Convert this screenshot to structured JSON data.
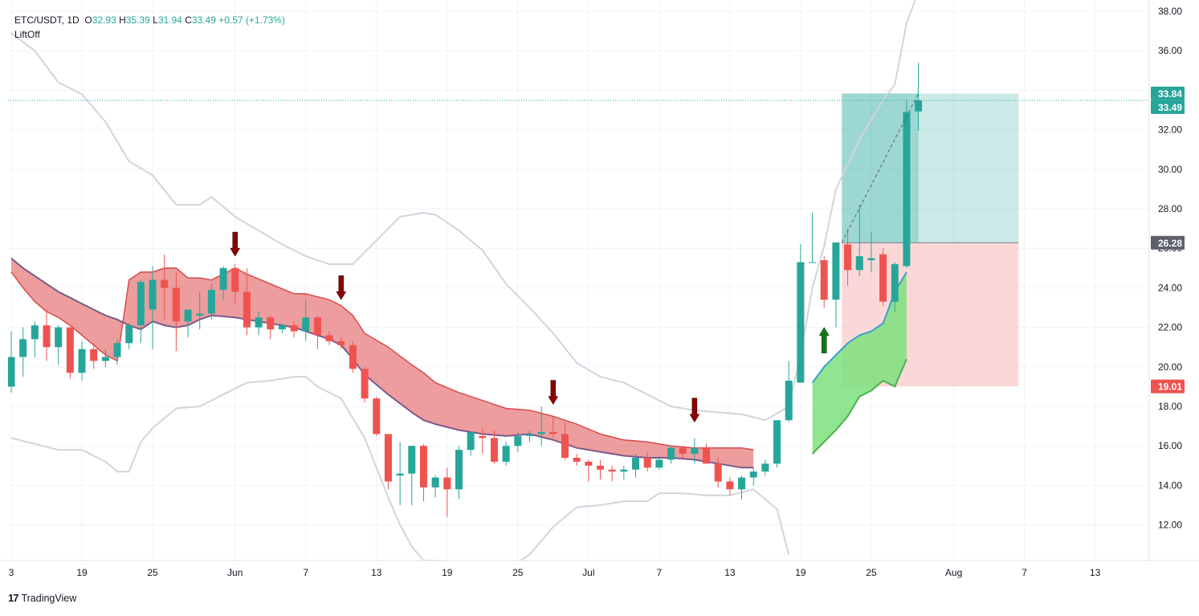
{
  "header": {
    "symbol": "ETC/USDT, 1D",
    "open_label": "O",
    "open": "32.93",
    "high_label": "H",
    "high": "35.39",
    "low_label": "L",
    "low": "31.94",
    "close_label": "C",
    "close": "33.49",
    "change": "+0.57 (+1.73%)",
    "indicator": "LiftOff"
  },
  "footer": {
    "brand_mark": "17",
    "brand": "TradingView"
  },
  "colors": {
    "up": "#26a69a",
    "down": "#ef5350",
    "cloud": "#e57373",
    "cloud_line_upper": "#d84b4b",
    "cloud_line_lower": "#7b5a8a",
    "band": "#d1d4dc",
    "green_cloud": "#7ee07e",
    "green_line": "#4ab04a",
    "arrow_down": "#8b0000",
    "arrow_up": "#137a13",
    "profit": "#26a69a",
    "loss": "#f7a9a8"
  },
  "chart_data": {
    "type": "candlestick",
    "symbol": "ETC/USDT",
    "interval": "1D",
    "ylim": [
      10,
      38
    ],
    "y_ticks": [
      "12.00",
      "14.00",
      "16.00",
      "18.00",
      "20.00",
      "22.00",
      "24.00",
      "26.00",
      "28.00",
      "30.00",
      "32.00",
      "34.00",
      "36.00",
      "38.00"
    ],
    "x_ticks": [
      {
        "label": "3",
        "day": 0
      },
      {
        "label": "19",
        "day": 6
      },
      {
        "label": "25",
        "day": 12
      },
      {
        "label": "Jun",
        "day": 19
      },
      {
        "label": "7",
        "day": 25
      },
      {
        "label": "13",
        "day": 31
      },
      {
        "label": "19",
        "day": 37
      },
      {
        "label": "25",
        "day": 43
      },
      {
        "label": "Jul",
        "day": 49
      },
      {
        "label": "7",
        "day": 55
      },
      {
        "label": "13",
        "day": 61
      },
      {
        "label": "19",
        "day": 67
      },
      {
        "label": "25",
        "day": 73
      },
      {
        "label": "Aug",
        "day": 80
      },
      {
        "label": "7",
        "day": 86
      },
      {
        "label": "13",
        "day": 92
      }
    ],
    "x_range": [
      0,
      96
    ],
    "candles": [
      [
        19.0,
        21.8,
        18.7,
        20.5
      ],
      [
        20.5,
        22.0,
        19.5,
        21.4
      ],
      [
        21.4,
        22.3,
        20.5,
        22.1
      ],
      [
        22.1,
        22.9,
        20.3,
        21.0
      ],
      [
        21.0,
        22.1,
        20.1,
        22.0
      ],
      [
        22.0,
        22.0,
        19.4,
        19.7
      ],
      [
        19.7,
        21.3,
        19.3,
        20.9
      ],
      [
        20.9,
        21.2,
        19.9,
        20.3
      ],
      [
        20.3,
        20.9,
        20.0,
        20.5
      ],
      [
        20.5,
        21.4,
        20.1,
        21.2
      ],
      [
        21.2,
        22.2,
        20.9,
        22.1
      ],
      [
        22.1,
        24.4,
        21.2,
        24.3
      ],
      [
        22.9,
        25.1,
        20.9,
        24.4
      ],
      [
        24.4,
        25.7,
        22.4,
        24.0
      ],
      [
        24.0,
        24.8,
        20.8,
        22.3
      ],
      [
        22.3,
        22.9,
        21.5,
        22.9
      ],
      [
        22.6,
        23.8,
        21.9,
        22.7
      ],
      [
        22.7,
        24.2,
        22.4,
        23.9
      ],
      [
        23.9,
        25.1,
        23.4,
        25.0
      ],
      [
        25.0,
        25.2,
        23.2,
        23.8
      ],
      [
        23.8,
        25.0,
        21.6,
        22.0
      ],
      [
        22.0,
        22.8,
        21.6,
        22.5
      ],
      [
        22.5,
        22.6,
        21.4,
        21.9
      ],
      [
        21.9,
        22.2,
        21.7,
        22.1
      ],
      [
        22.1,
        22.3,
        21.5,
        21.8
      ],
      [
        21.8,
        23.4,
        21.3,
        22.5
      ],
      [
        22.5,
        22.6,
        20.9,
        21.6
      ],
      [
        21.6,
        21.8,
        21.1,
        21.3
      ],
      [
        21.3,
        21.5,
        20.9,
        21.1
      ],
      [
        21.1,
        21.3,
        19.7,
        19.9
      ],
      [
        19.9,
        20.0,
        18.2,
        18.4
      ],
      [
        18.4,
        18.5,
        16.5,
        16.6
      ],
      [
        16.6,
        16.6,
        13.8,
        14.2
      ],
      [
        14.5,
        16.2,
        13.0,
        14.6
      ],
      [
        14.6,
        16.0,
        13.0,
        16.0
      ],
      [
        16.0,
        16.1,
        13.2,
        13.9
      ],
      [
        13.9,
        14.5,
        13.4,
        14.4
      ],
      [
        14.4,
        14.9,
        12.4,
        13.8
      ],
      [
        13.8,
        16.0,
        13.3,
        15.8
      ],
      [
        15.8,
        16.6,
        15.5,
        16.7
      ],
      [
        16.5,
        16.9,
        15.6,
        16.4
      ],
      [
        16.4,
        16.8,
        15.1,
        15.2
      ],
      [
        15.2,
        16.2,
        15.0,
        16.0
      ],
      [
        16.0,
        16.7,
        15.7,
        16.5
      ],
      [
        16.5,
        16.8,
        16.2,
        16.6
      ],
      [
        16.6,
        18.0,
        16.0,
        16.7
      ],
      [
        16.7,
        17.5,
        16.4,
        16.6
      ],
      [
        16.6,
        17.2,
        15.3,
        15.4
      ],
      [
        15.4,
        15.6,
        15.0,
        15.2
      ],
      [
        15.2,
        15.3,
        14.2,
        15.0
      ],
      [
        15.0,
        15.3,
        14.3,
        14.8
      ],
      [
        14.8,
        15.0,
        14.2,
        14.7
      ],
      [
        14.7,
        15.0,
        14.3,
        14.8
      ],
      [
        14.8,
        15.6,
        14.4,
        15.4
      ],
      [
        15.4,
        15.7,
        14.7,
        14.9
      ],
      [
        14.9,
        15.5,
        14.8,
        15.3
      ],
      [
        15.3,
        16.0,
        15.1,
        15.9
      ],
      [
        15.9,
        16.0,
        15.3,
        15.6
      ],
      [
        15.6,
        16.4,
        15.1,
        15.9
      ],
      [
        15.9,
        16.1,
        15.2,
        15.1
      ],
      [
        15.1,
        15.4,
        13.9,
        14.2
      ],
      [
        14.2,
        14.4,
        13.5,
        13.8
      ],
      [
        13.8,
        14.5,
        13.3,
        14.4
      ],
      [
        14.4,
        14.9,
        14.0,
        14.7
      ],
      [
        14.7,
        15.3,
        14.5,
        15.1
      ],
      [
        15.1,
        17.3,
        14.9,
        17.3
      ],
      [
        17.3,
        20.3,
        17.2,
        19.3
      ],
      [
        19.2,
        26.2,
        19.2,
        25.3
      ],
      [
        25.3,
        27.8,
        25.3,
        25.3
      ],
      [
        25.4,
        25.6,
        23.0,
        23.4
      ],
      [
        23.4,
        26.3,
        22.0,
        26.3
      ],
      [
        26.2,
        27.0,
        24.1,
        24.9
      ],
      [
        24.9,
        28.2,
        24.6,
        25.6
      ],
      [
        25.4,
        26.8,
        24.8,
        25.5
      ],
      [
        25.7,
        26.0,
        23.1,
        23.3
      ],
      [
        23.3,
        25.3,
        22.8,
        25.2
      ],
      [
        25.1,
        33.5,
        25.0,
        32.9
      ],
      [
        32.93,
        35.39,
        31.94,
        33.49
      ]
    ],
    "bands_upper": [
      [
        0,
        36.9
      ],
      [
        2,
        36.0
      ],
      [
        4,
        34.4
      ],
      [
        6,
        33.8
      ],
      [
        8,
        32.4
      ],
      [
        10,
        30.4
      ],
      [
        12,
        29.7
      ],
      [
        14,
        28.2
      ],
      [
        16,
        28.2
      ],
      [
        17,
        28.6
      ],
      [
        19,
        27.6
      ],
      [
        21,
        26.9
      ],
      [
        23,
        26.2
      ],
      [
        25,
        25.6
      ],
      [
        27,
        25.2
      ],
      [
        29,
        25.2
      ],
      [
        31,
        26.4
      ],
      [
        33,
        27.6
      ],
      [
        35,
        27.8
      ],
      [
        36,
        27.7
      ],
      [
        38,
        26.9
      ],
      [
        40,
        25.9
      ],
      [
        42,
        24.2
      ],
      [
        44,
        23.0
      ],
      [
        46,
        21.7
      ],
      [
        48,
        20.2
      ],
      [
        50,
        19.5
      ],
      [
        52,
        19.2
      ],
      [
        54,
        18.6
      ],
      [
        56,
        18.0
      ],
      [
        58,
        17.8
      ],
      [
        60,
        17.7
      ],
      [
        62,
        17.6
      ],
      [
        64,
        17.3
      ],
      [
        66,
        18.0
      ],
      [
        67,
        20.6
      ],
      [
        68,
        24.0
      ],
      [
        69,
        26.1
      ],
      [
        70,
        29.0
      ],
      [
        72,
        31.5
      ],
      [
        74,
        33.5
      ],
      [
        75,
        34.3
      ],
      [
        76,
        37.4
      ],
      [
        77,
        39.0
      ]
    ],
    "bands_lower": [
      [
        0,
        16.4
      ],
      [
        2,
        16.1
      ],
      [
        4,
        15.8
      ],
      [
        6,
        15.8
      ],
      [
        8,
        15.2
      ],
      [
        9,
        14.7
      ],
      [
        10,
        14.7
      ],
      [
        11,
        16.2
      ],
      [
        12,
        16.9
      ],
      [
        14,
        17.9
      ],
      [
        16,
        18.0
      ],
      [
        18,
        18.6
      ],
      [
        20,
        19.2
      ],
      [
        22,
        19.3
      ],
      [
        24,
        19.5
      ],
      [
        25,
        19.5
      ],
      [
        26,
        19.0
      ],
      [
        28,
        18.4
      ],
      [
        30,
        16.4
      ],
      [
        32,
        13.4
      ],
      [
        33,
        12.0
      ],
      [
        34,
        10.9
      ],
      [
        35,
        10.2
      ],
      [
        43,
        10.1
      ],
      [
        44,
        10.5
      ],
      [
        46,
        11.9
      ],
      [
        48,
        12.9
      ],
      [
        50,
        13.0
      ],
      [
        52,
        13.2
      ],
      [
        54,
        13.2
      ],
      [
        55,
        13.6
      ],
      [
        57,
        13.6
      ],
      [
        59,
        13.5
      ],
      [
        61,
        13.5
      ],
      [
        63,
        13.8
      ],
      [
        65,
        12.8
      ],
      [
        66,
        10.5
      ]
    ],
    "cloud_upper": [
      [
        0,
        24.8
      ],
      [
        1,
        24.0
      ],
      [
        2,
        23.3
      ],
      [
        3,
        22.8
      ],
      [
        4,
        22.5
      ],
      [
        5,
        22.1
      ],
      [
        6,
        21.6
      ],
      [
        7,
        21.1
      ],
      [
        8,
        20.6
      ],
      [
        9,
        20.3
      ],
      [
        10,
        24.4
      ],
      [
        11,
        24.8
      ],
      [
        12,
        24.8
      ],
      [
        13,
        25.0
      ],
      [
        14,
        25.0
      ],
      [
        15,
        24.5
      ],
      [
        16,
        24.5
      ],
      [
        17,
        24.4
      ],
      [
        19,
        25.0
      ],
      [
        20,
        24.7
      ],
      [
        22,
        24.2
      ],
      [
        24,
        23.7
      ],
      [
        25,
        23.7
      ],
      [
        27,
        23.4
      ],
      [
        28,
        23.1
      ],
      [
        29,
        22.6
      ],
      [
        30,
        21.7
      ],
      [
        32,
        21.0
      ],
      [
        34,
        20.1
      ],
      [
        35,
        19.7
      ],
      [
        36,
        19.2
      ],
      [
        38,
        18.7
      ],
      [
        40,
        18.3
      ],
      [
        42,
        17.9
      ],
      [
        44,
        17.8
      ],
      [
        46,
        17.5
      ],
      [
        48,
        17.1
      ],
      [
        50,
        16.6
      ],
      [
        52,
        16.3
      ],
      [
        54,
        16.2
      ],
      [
        56,
        16.0
      ],
      [
        58,
        15.9
      ],
      [
        60,
        15.9
      ],
      [
        62,
        15.9
      ],
      [
        63,
        15.8
      ]
    ],
    "cloud_lower": [
      [
        0,
        25.5
      ],
      [
        1,
        25.0
      ],
      [
        2,
        24.6
      ],
      [
        3,
        24.2
      ],
      [
        4,
        23.8
      ],
      [
        5,
        23.5
      ],
      [
        6,
        23.2
      ],
      [
        7,
        22.9
      ],
      [
        8,
        22.6
      ],
      [
        9,
        22.4
      ],
      [
        10,
        22.1
      ],
      [
        11,
        21.9
      ],
      [
        12,
        22.3
      ],
      [
        13,
        22.1
      ],
      [
        14,
        22.0
      ],
      [
        15,
        22.1
      ],
      [
        16,
        22.4
      ],
      [
        17,
        22.6
      ],
      [
        19,
        22.5
      ],
      [
        20,
        22.4
      ],
      [
        22,
        22.2
      ],
      [
        24,
        22.0
      ],
      [
        25,
        21.8
      ],
      [
        27,
        21.4
      ],
      [
        28,
        21.1
      ],
      [
        29,
        20.4
      ],
      [
        30,
        19.6
      ],
      [
        32,
        18.6
      ],
      [
        34,
        17.7
      ],
      [
        35,
        17.3
      ],
      [
        36,
        17.1
      ],
      [
        38,
        16.8
      ],
      [
        40,
        16.6
      ],
      [
        42,
        16.5
      ],
      [
        44,
        16.6
      ],
      [
        46,
        16.3
      ],
      [
        48,
        15.9
      ],
      [
        50,
        15.7
      ],
      [
        52,
        15.5
      ],
      [
        54,
        15.4
      ],
      [
        56,
        15.4
      ],
      [
        58,
        15.3
      ],
      [
        60,
        15.1
      ],
      [
        62,
        14.9
      ],
      [
        63,
        14.9
      ]
    ],
    "green_upper": [
      [
        68,
        19.2
      ],
      [
        69,
        20.0
      ],
      [
        70,
        20.6
      ],
      [
        71,
        21.2
      ],
      [
        72,
        21.6
      ],
      [
        73,
        21.8
      ],
      [
        74,
        22.2
      ],
      [
        75,
        23.8
      ],
      [
        76,
        24.8
      ]
    ],
    "green_lower": [
      [
        68,
        15.6
      ],
      [
        69,
        16.2
      ],
      [
        70,
        16.8
      ],
      [
        71,
        17.5
      ],
      [
        72,
        18.5
      ],
      [
        73,
        18.8
      ],
      [
        74,
        19.3
      ],
      [
        75,
        19.0
      ],
      [
        76,
        20.4
      ]
    ],
    "arrows_down": [
      [
        19,
        25.6
      ],
      [
        28,
        23.4
      ],
      [
        46,
        18.1
      ],
      [
        58,
        17.2
      ]
    ],
    "arrows_up": [
      [
        69,
        22.0
      ]
    ],
    "position": {
      "start_day": 70.5,
      "end_day": 85.5,
      "entry": 26.28,
      "target": 33.84,
      "stop": 19.01,
      "trace": [
        [
          70.5,
          26.3
        ],
        [
          77,
          33.84
        ]
      ]
    },
    "price_labels": [
      {
        "value": "33.84",
        "price": 33.84,
        "color": "#26a69a"
      },
      {
        "value": "33.49",
        "price": 33.49,
        "color": "#26a69a"
      },
      {
        "value": "26.28",
        "price": 26.28,
        "color": "#5d606b"
      },
      {
        "value": "19.01",
        "price": 19.01,
        "color": "#ef5350"
      }
    ],
    "last_price": 33.49
  }
}
